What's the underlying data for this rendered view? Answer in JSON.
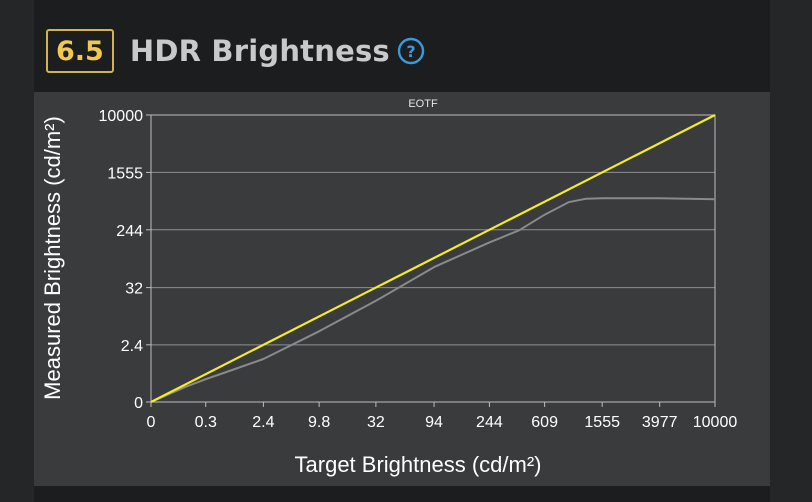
{
  "header": {
    "score": "6.5",
    "title": "HDR Brightness",
    "help_icon": "question-circle-icon"
  },
  "colors": {
    "accent": "#f0c94e",
    "help_icon": "#3a9ad9",
    "target_line": "#f2ec2b",
    "measured_line": "#8a8a8a"
  },
  "chart_data": {
    "type": "line",
    "title": "EOTF",
    "xlabel": "Target Brightness (cd/m²)",
    "ylabel": "Measured Brightness (cd/m²)",
    "x_ticks": [
      "0",
      "0.3",
      "2.4",
      "9.8",
      "32",
      "94",
      "244",
      "609",
      "1555",
      "3977",
      "10000"
    ],
    "y_ticks": [
      "0",
      "2.4",
      "32",
      "244",
      "1555",
      "10000"
    ],
    "scale": "PQ (EOTF)",
    "xlim": [
      0,
      10000
    ],
    "ylim": [
      0,
      10000
    ],
    "grid": "horizontal",
    "series": [
      {
        "role": "target",
        "x": [
          0,
          10000
        ],
        "y": [
          0,
          10000
        ]
      },
      {
        "role": "measured",
        "x": [
          0,
          0.1,
          0.3,
          0.8,
          2.4,
          9.8,
          32,
          94,
          244,
          400,
          609,
          900,
          1200,
          1555,
          2500,
          3977,
          10000
        ],
        "y": [
          0,
          0.07,
          0.18,
          0.4,
          1.0,
          4.9,
          19,
          68,
          160,
          240,
          400,
          600,
          670,
          680,
          680,
          680,
          660
        ]
      }
    ]
  }
}
